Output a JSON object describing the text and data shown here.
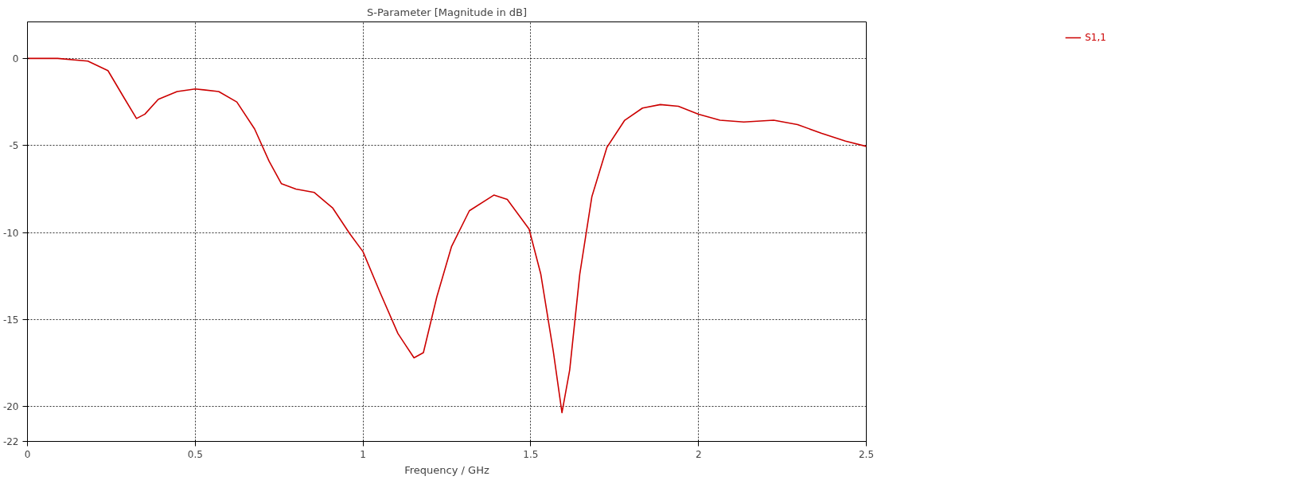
{
  "chart_data": {
    "type": "line",
    "title": "S-Parameter [Magnitude in dB]",
    "xlabel": "Frequency / GHz",
    "x": [
      0,
      0.09,
      0.18,
      0.24,
      0.286,
      0.325,
      0.35,
      0.39,
      0.446,
      0.5,
      0.57,
      0.624,
      0.677,
      0.72,
      0.757,
      0.8,
      0.855,
      0.91,
      0.96,
      1.0,
      1.05,
      1.104,
      1.152,
      1.18,
      1.22,
      1.264,
      1.317,
      1.39,
      1.43,
      1.495,
      1.53,
      1.567,
      1.593,
      1.616,
      1.646,
      1.682,
      1.727,
      1.78,
      1.833,
      1.886,
      1.94,
      2.0,
      2.064,
      2.135,
      2.224,
      2.295,
      2.367,
      2.438,
      2.5
    ],
    "series": [
      {
        "name": "S1,1",
        "color": "#cc0000",
        "values": [
          0,
          0,
          -0.15,
          -0.7,
          -2.2,
          -3.45,
          -3.2,
          -2.35,
          -1.9,
          -1.75,
          -1.9,
          -2.5,
          -4.05,
          -5.9,
          -7.2,
          -7.5,
          -7.7,
          -8.6,
          -10.05,
          -11.1,
          -13.4,
          -15.8,
          -17.2,
          -16.9,
          -13.7,
          -10.8,
          -8.75,
          -7.85,
          -8.1,
          -9.8,
          -12.4,
          -16.8,
          -20.35,
          -17.9,
          -12.4,
          -7.95,
          -5.1,
          -3.55,
          -2.85,
          -2.65,
          -2.75,
          -3.2,
          -3.55,
          -3.65,
          -3.55,
          -3.8,
          -4.3,
          -4.75,
          -5.05
        ]
      }
    ],
    "xlim": [
      0,
      2.5
    ],
    "xticks": [
      0,
      0.5,
      1,
      1.5,
      2,
      2.5
    ],
    "ylim": [
      -22,
      2.1
    ],
    "yticks": [
      0,
      -5,
      -10,
      -15,
      -20,
      -22
    ],
    "grid": true,
    "legend": "top right",
    "marker": "none",
    "line_style": "solid"
  }
}
